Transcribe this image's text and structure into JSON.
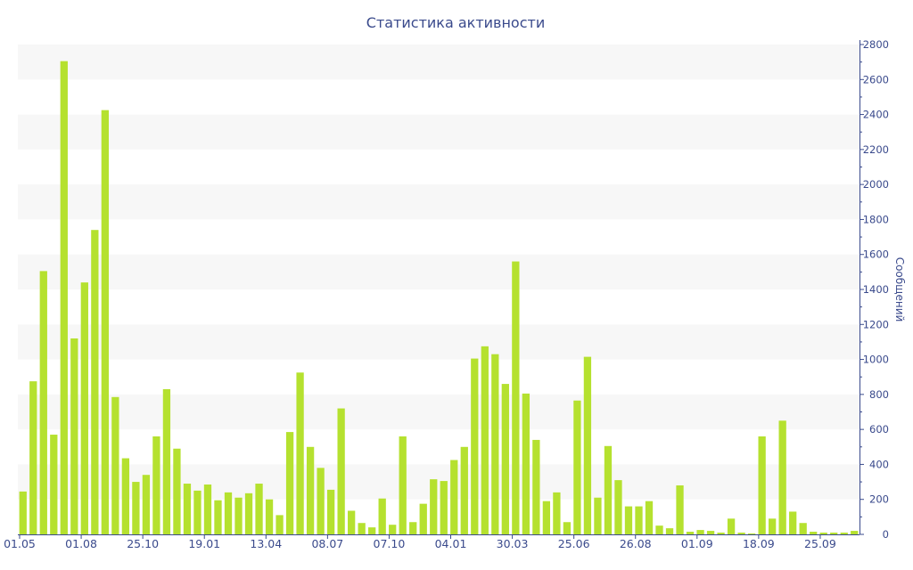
{
  "chart_data": {
    "type": "bar",
    "title": "Статистика активности",
    "ylabel": "Сообщений",
    "ylim": [
      0,
      2800
    ],
    "yticks": [
      0,
      200,
      400,
      600,
      800,
      1000,
      1200,
      1400,
      1600,
      1800,
      2000,
      2200,
      2400,
      2600,
      2800
    ],
    "xtick_labels": [
      "01.05",
      "01.08",
      "25.10",
      "19.01",
      "13.04",
      "08.07",
      "07.10",
      "04.01",
      "30.03",
      "25.06",
      "26.08",
      "01.09",
      "18.09",
      "25.09"
    ],
    "xtick_indices": [
      0,
      6,
      12,
      18,
      24,
      30,
      36,
      42,
      48,
      54,
      60,
      66,
      72,
      78
    ],
    "grid": true,
    "colors": {
      "bar": "#b5e12f",
      "text": "#3a4a8c",
      "band": "#f7f7f7",
      "axis": "#3a4a8c"
    },
    "values": [
      245,
      875,
      1505,
      570,
      2705,
      1120,
      1440,
      1740,
      2425,
      785,
      435,
      300,
      340,
      560,
      830,
      490,
      290,
      250,
      285,
      195,
      240,
      210,
      235,
      290,
      200,
      110,
      585,
      925,
      500,
      380,
      255,
      720,
      135,
      65,
      40,
      205,
      55,
      560,
      70,
      175,
      315,
      305,
      425,
      500,
      1005,
      1075,
      1030,
      860,
      1560,
      805,
      540,
      190,
      240,
      70,
      765,
      1015,
      210,
      505,
      310,
      160,
      160,
      190,
      50,
      35,
      280,
      15,
      25,
      20,
      10,
      90,
      10,
      5,
      560,
      90,
      650,
      130,
      65,
      15,
      10,
      10,
      10,
      20
    ]
  }
}
